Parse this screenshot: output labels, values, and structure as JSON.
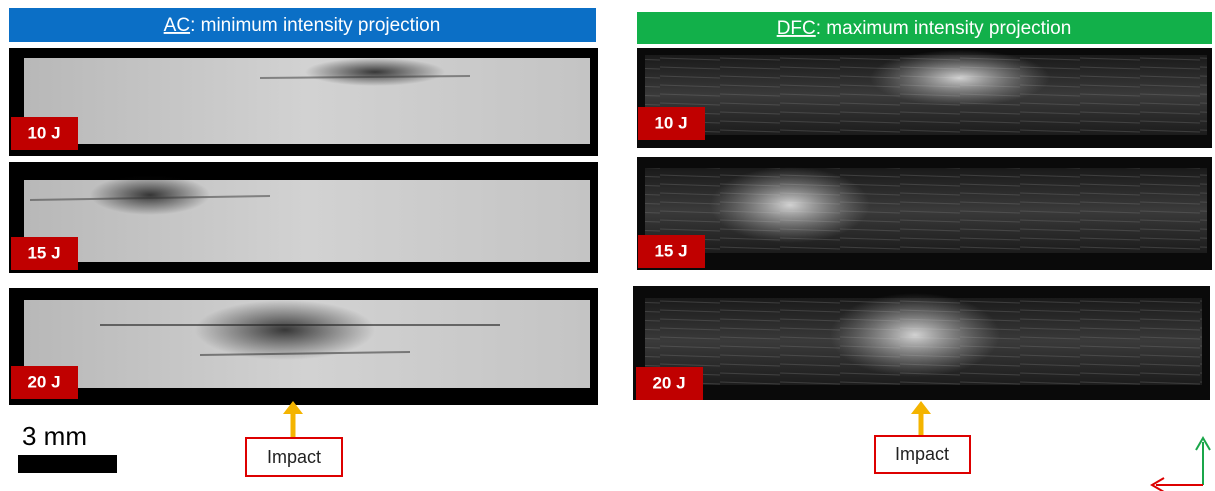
{
  "left_panel": {
    "header": {
      "abbr": "AC",
      "rest": ": minimum intensity projection"
    },
    "labels": [
      "10 J",
      "15 J",
      "20 J"
    ]
  },
  "right_panel": {
    "header": {
      "abbr": "DFC",
      "rest": ": maximum intensity projection"
    },
    "labels": [
      "10 J",
      "15 J",
      "20 J"
    ]
  },
  "scale_bar": "3 mm",
  "impact_labels": [
    "Impact",
    "Impact"
  ]
}
